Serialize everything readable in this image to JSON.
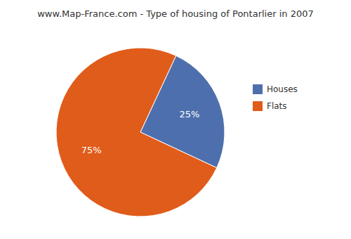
{
  "chart_data": {
    "type": "pie",
    "title": "www.Map-France.com - Type of housing of Pontarlier in 2007",
    "categories": [
      "Houses",
      "Flats"
    ],
    "values": [
      25,
      75
    ],
    "value_labels": [
      "25%",
      "75%"
    ],
    "colors": [
      "#4e6fad",
      "#E05C1A"
    ],
    "data_labels": true,
    "legend": "right"
  }
}
